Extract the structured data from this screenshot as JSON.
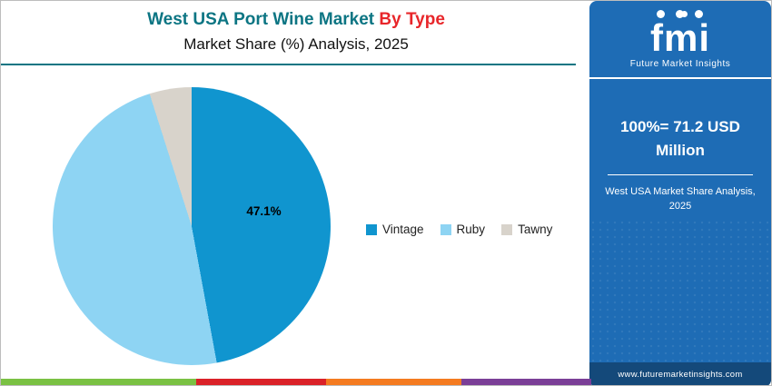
{
  "header": {
    "title_main": "West USA Port Wine Market ",
    "title_accent": "By Type",
    "title_color": "#0c7583",
    "accent_color": "#e8262a",
    "subtitle": "Market Share (%) Analysis, 2025",
    "divider_color": "#0c7583"
  },
  "chart_data": {
    "type": "pie",
    "title": "West USA Port Wine Market By Type",
    "subtitle": "Market Share (%) Analysis, 2025",
    "slices": [
      {
        "label": "Vintage",
        "value": 47.1,
        "color": "#1095cf",
        "data_label": "47.1%"
      },
      {
        "label": "Ruby",
        "value": 48.0,
        "color": "#8ed4f3"
      },
      {
        "label": "Tawny",
        "value": 4.9,
        "color": "#d8d3cb"
      }
    ],
    "legend_position": "right",
    "start_angle_deg": 0,
    "direction": "clockwise"
  },
  "sidebar": {
    "bg_color": "#1e6cb5",
    "logo_text": "fmi",
    "logo_subtext": "Future Market Insights",
    "stat_text": "100%= 71.2 USD Million",
    "caption": "West USA Market Share Analysis, 2025",
    "website": "www.futuremarketinsights.com",
    "footer_bg": "#14497a"
  },
  "footer_bar": {
    "colors": [
      "#7ac143",
      "#da2128",
      "#f47b20",
      "#7b3f97"
    ]
  }
}
